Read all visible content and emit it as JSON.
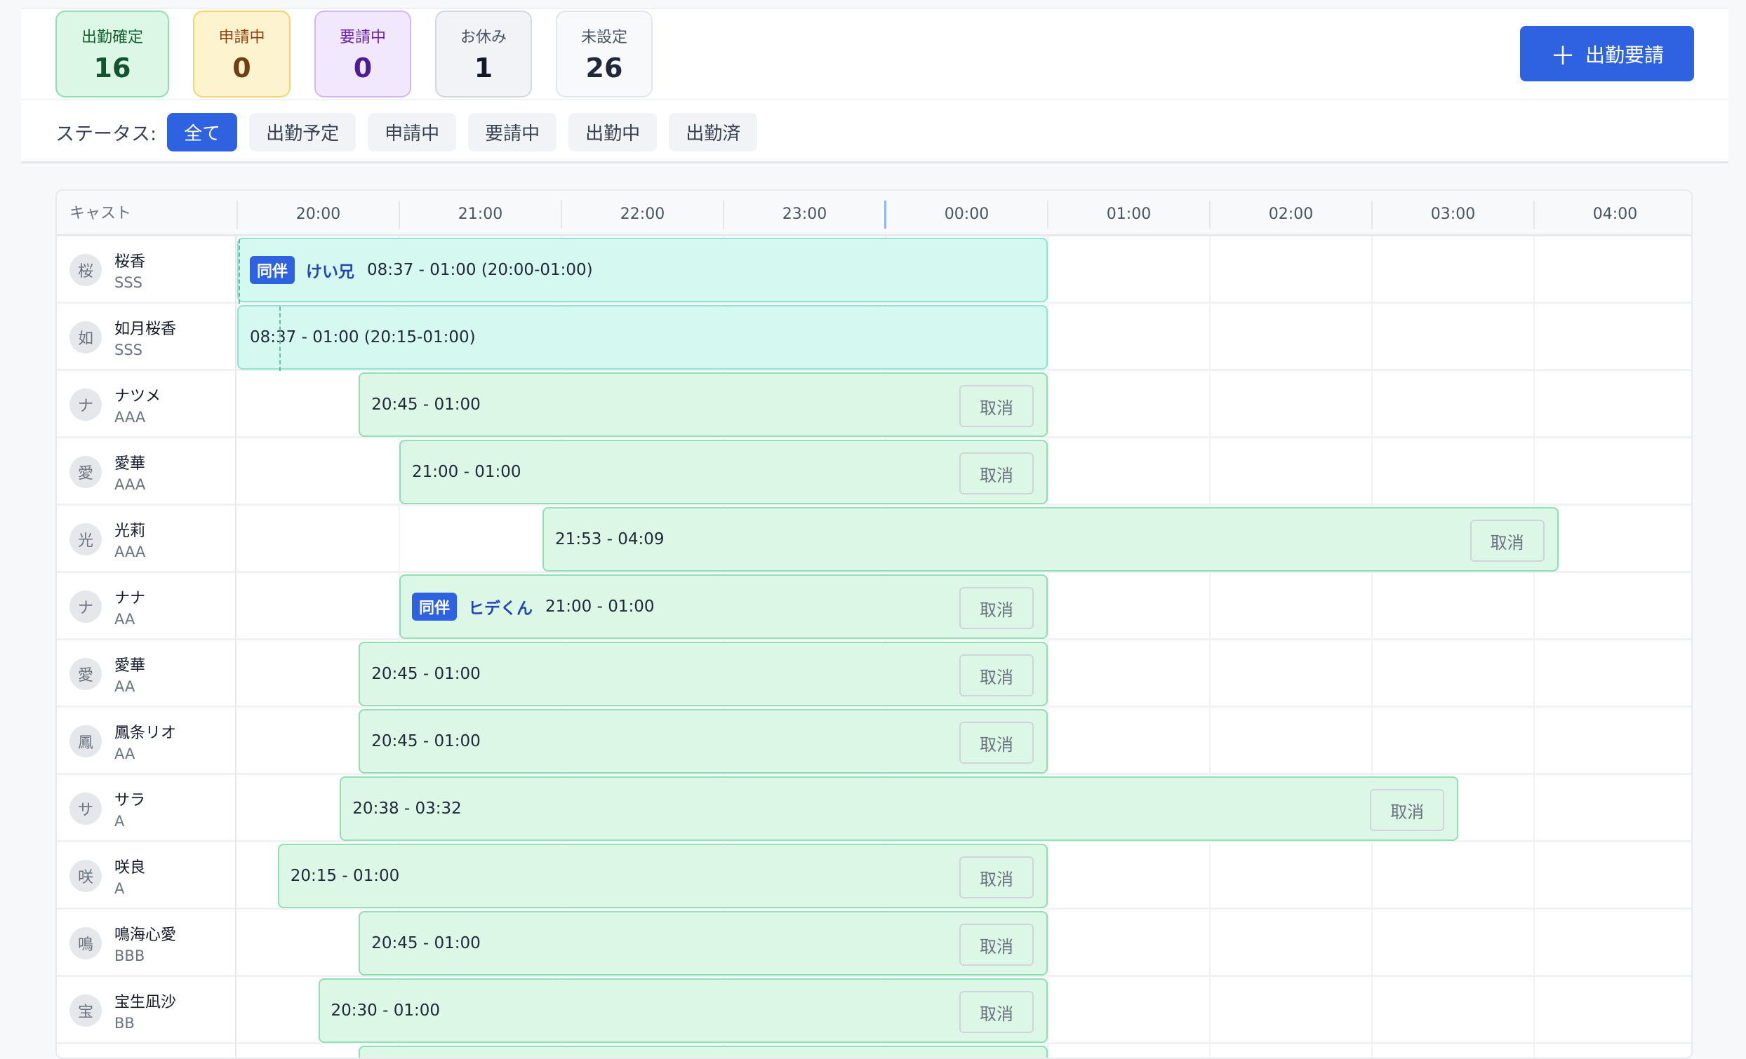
{
  "stats": [
    {
      "label": "出勤確定",
      "value": "16",
      "bg": "#dcf7e6",
      "border": "#8fe0b2",
      "color": "#14532d",
      "labelColor": "#166534",
      "width": 162
    },
    {
      "label": "申請中",
      "value": "0",
      "bg": "#fdf4cf",
      "border": "#f6d66b",
      "color": "#713f12",
      "labelColor": "#92400e",
      "width": 139
    },
    {
      "label": "要請中",
      "value": "0",
      "bg": "#f1e8fe",
      "border": "#d3b8f6",
      "color": "#4c1d95",
      "labelColor": "#6b21a8",
      "width": 138
    },
    {
      "label": "お休み",
      "value": "1",
      "bg": "#f1f3f7",
      "border": "#d4d8df",
      "color": "#111827",
      "labelColor": "#4b5563",
      "width": 138
    },
    {
      "label": "未設定",
      "value": "26",
      "bg": "#f8f9fb",
      "border": "#e3e6ea",
      "color": "#1f2937",
      "labelColor": "#4b5563",
      "width": 138
    }
  ],
  "request_button": {
    "icon": "plus-icon",
    "label": "出勤要請"
  },
  "filters": {
    "label": "ステータス:",
    "options": [
      "全て",
      "出勤予定",
      "申請中",
      "要請中",
      "出勤中",
      "出勤済"
    ],
    "active": 0
  },
  "table": {
    "cast_header": "キャスト",
    "hours": [
      "20:00",
      "21:00",
      "22:00",
      "23:00",
      "00:00",
      "01:00",
      "02:00",
      "03:00",
      "04:00"
    ],
    "cancel_label": "取消",
    "rows": [
      {
        "avatar": "桜",
        "name": "桜香",
        "rank": "SSS",
        "type": "teal",
        "badge": "同伴",
        "partner": "けい兄",
        "time": "08:37 - 01:00 (20:00-01:00)",
        "cancel": false
      },
      {
        "avatar": "如",
        "name": "如月桜香",
        "rank": "SSS",
        "type": "teal",
        "time": "08:37 - 01:00 (20:15-01:00)",
        "cancel": false
      },
      {
        "avatar": "ナ",
        "name": "ナツメ",
        "rank": "AAA",
        "time": "20:45 - 01:00",
        "cancel": true
      },
      {
        "avatar": "愛",
        "name": "愛華",
        "rank": "AAA",
        "time": "21:00 - 01:00",
        "cancel": true
      },
      {
        "avatar": "光",
        "name": "光莉",
        "rank": "AAA",
        "time": "21:53 - 04:09",
        "cancel": true
      },
      {
        "avatar": "ナ",
        "name": "ナナ",
        "rank": "AA",
        "badge": "同伴",
        "partner": "ヒデくん",
        "time": "21:00 - 01:00",
        "cancel": true
      },
      {
        "avatar": "愛",
        "name": "愛華",
        "rank": "AA",
        "time": "20:45 - 01:00",
        "cancel": true
      },
      {
        "avatar": "鳳",
        "name": "鳳条リオ",
        "rank": "AA",
        "time": "20:45 - 01:00",
        "cancel": true
      },
      {
        "avatar": "サ",
        "name": "サラ",
        "rank": "A",
        "time": "20:38 - 03:32",
        "cancel": true
      },
      {
        "avatar": "咲",
        "name": "咲良",
        "rank": "A",
        "time": "20:15 - 01:00",
        "cancel": true
      },
      {
        "avatar": "鳴",
        "name": "鳴海心愛",
        "rank": "BBB",
        "time": "20:45 - 01:00",
        "cancel": true
      },
      {
        "avatar": "宝",
        "name": "宝生凪沙",
        "rank": "BB",
        "time": "20:30 - 01:00",
        "cancel": true
      }
    ]
  }
}
